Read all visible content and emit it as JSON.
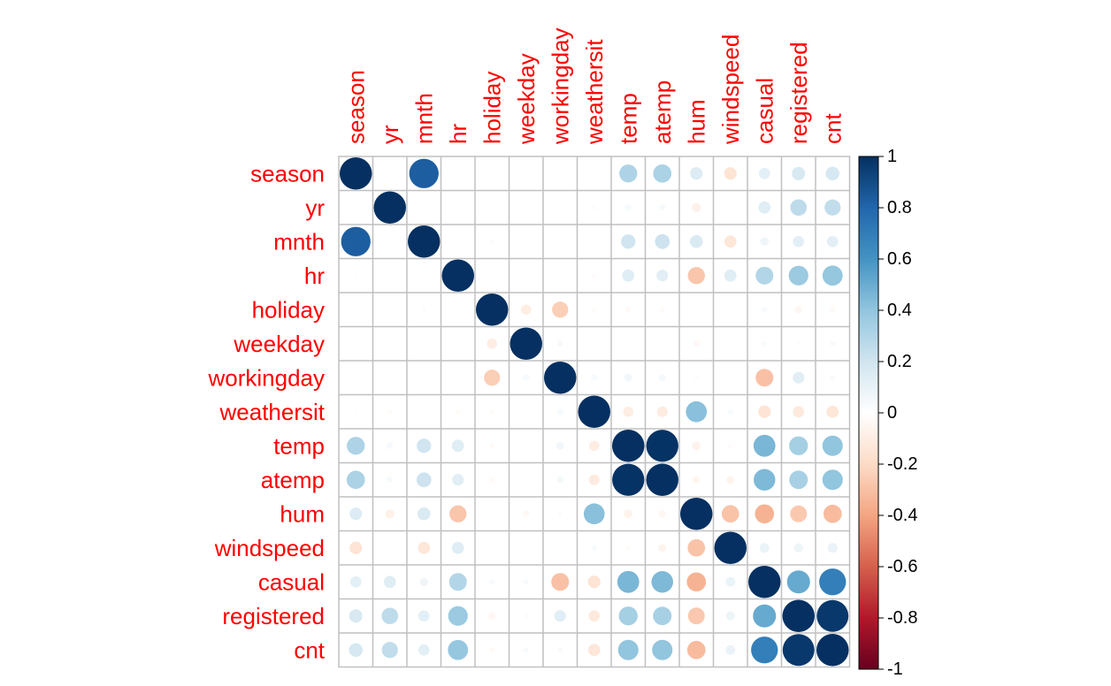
{
  "chart_data": {
    "type": "heatmap",
    "method": "circle",
    "variables": [
      "season",
      "yr",
      "mnth",
      "hr",
      "holiday",
      "weekday",
      "workingday",
      "weathersit",
      "temp",
      "atemp",
      "hum",
      "windspeed",
      "casual",
      "registered",
      "cnt"
    ],
    "matrix": [
      [
        1.0,
        -0.01,
        0.83,
        -0.01,
        -0.01,
        -0.0,
        0.01,
        -0.01,
        0.31,
        0.32,
        0.15,
        -0.15,
        0.12,
        0.17,
        0.18
      ],
      [
        -0.01,
        1.0,
        -0.01,
        -0.0,
        0.01,
        -0.0,
        -0.0,
        -0.02,
        0.04,
        0.04,
        -0.08,
        -0.01,
        0.14,
        0.26,
        0.25
      ],
      [
        0.83,
        -0.01,
        1.0,
        -0.01,
        0.02,
        0.01,
        -0.0,
        0.01,
        0.2,
        0.21,
        0.16,
        -0.14,
        0.07,
        0.12,
        0.12
      ],
      [
        -0.01,
        -0.0,
        -0.01,
        1.0,
        0.0,
        -0.0,
        0.0,
        -0.02,
        0.14,
        0.13,
        -0.28,
        0.14,
        0.3,
        0.37,
        0.39
      ],
      [
        -0.01,
        0.01,
        0.02,
        0.0,
        1.0,
        -0.1,
        -0.25,
        -0.02,
        -0.03,
        -0.03,
        -0.01,
        0.0,
        0.03,
        -0.05,
        -0.03
      ],
      [
        -0.0,
        -0.0,
        0.01,
        -0.0,
        -0.1,
        1.0,
        0.04,
        0.0,
        -0.0,
        -0.01,
        -0.04,
        0.01,
        0.03,
        0.02,
        0.03
      ],
      [
        0.01,
        -0.0,
        -0.0,
        0.0,
        -0.25,
        0.04,
        1.0,
        0.04,
        0.06,
        0.05,
        0.02,
        -0.01,
        -0.3,
        0.13,
        0.03
      ],
      [
        -0.01,
        -0.02,
        0.01,
        -0.02,
        -0.02,
        0.0,
        0.04,
        1.0,
        -0.1,
        -0.11,
        0.42,
        0.03,
        -0.15,
        -0.12,
        -0.14
      ],
      [
        0.31,
        0.04,
        0.2,
        0.14,
        -0.03,
        -0.0,
        0.06,
        -0.1,
        1.0,
        0.99,
        -0.07,
        -0.02,
        0.46,
        0.34,
        0.4
      ],
      [
        0.32,
        0.04,
        0.21,
        0.13,
        -0.03,
        -0.01,
        0.05,
        -0.11,
        0.99,
        1.0,
        -0.05,
        -0.06,
        0.45,
        0.33,
        0.4
      ],
      [
        0.15,
        -0.08,
        0.16,
        -0.28,
        -0.01,
        -0.04,
        0.02,
        0.42,
        -0.07,
        -0.05,
        1.0,
        -0.29,
        -0.35,
        -0.27,
        -0.32
      ],
      [
        -0.15,
        -0.01,
        -0.14,
        0.14,
        0.0,
        0.01,
        -0.01,
        0.03,
        -0.02,
        -0.06,
        -0.29,
        1.0,
        0.09,
        0.08,
        0.09
      ],
      [
        0.12,
        0.14,
        0.07,
        0.3,
        0.03,
        0.03,
        -0.3,
        -0.15,
        0.46,
        0.45,
        -0.35,
        0.09,
        1.0,
        0.51,
        0.69
      ],
      [
        0.17,
        0.26,
        0.12,
        0.37,
        -0.05,
        0.02,
        0.13,
        -0.12,
        0.34,
        0.33,
        -0.27,
        0.08,
        0.51,
        1.0,
        0.97
      ],
      [
        0.18,
        0.25,
        0.12,
        0.39,
        -0.03,
        0.03,
        0.03,
        -0.14,
        0.4,
        0.4,
        -0.32,
        0.09,
        0.69,
        0.97,
        1.0
      ]
    ],
    "colorbar": {
      "range": [
        -1,
        1
      ],
      "ticks": [
        1,
        0.8,
        0.6,
        0.4,
        0.2,
        0,
        -0.2,
        -0.4,
        -0.6,
        -0.8,
        -1
      ],
      "tick_labels": [
        "1",
        "0.8",
        "0.6",
        "0.4",
        "0.2",
        "0",
        "-0.2",
        "-0.4",
        "-0.6",
        "-0.8",
        "-1"
      ],
      "palette": [
        "#67001F",
        "#B2182B",
        "#D6604D",
        "#F4A582",
        "#FDDBC7",
        "#FFFFFF",
        "#D1E5F0",
        "#92C5DE",
        "#4393C3",
        "#2166AC",
        "#053061"
      ]
    },
    "label_color": "#FF0000",
    "grid_color": "#C0C0C0"
  }
}
